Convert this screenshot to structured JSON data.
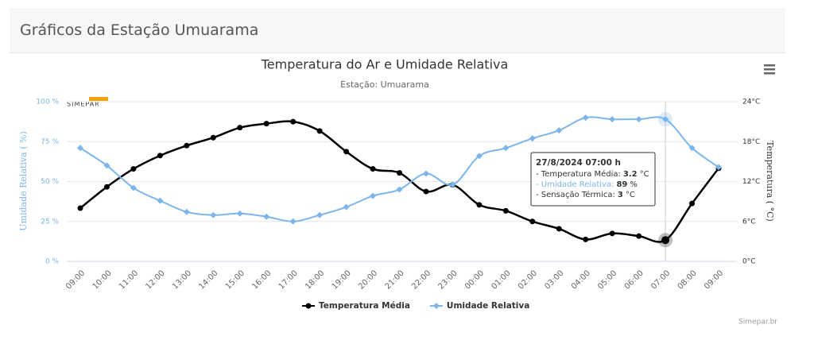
{
  "header": {
    "title": "Gráficos da Estação Umuarama"
  },
  "chart_data": {
    "type": "line",
    "title": "Temperatura do Ar e Umidade Relativa",
    "subtitle": "Estação: Umuarama",
    "logo": "SIMEPAR",
    "credit": "Simepar.br",
    "y_label": "Umidade Relativa ( %)",
    "y2_label": "Temperatura ( °C)",
    "categories": [
      "09:00",
      "10:00",
      "11:00",
      "12:00",
      "13:00",
      "14:00",
      "15:00",
      "16:00",
      "17:00",
      "18:00",
      "19:00",
      "20:00",
      "21:00",
      "22:00",
      "23:00",
      "00:00",
      "01:00",
      "02:00",
      "03:00",
      "04:00",
      "05:00",
      "06:00",
      "07:00",
      "08:00",
      "09:00"
    ],
    "ylim": [
      0,
      100
    ],
    "yticks": [
      {
        "value": 0,
        "label": "0 %"
      },
      {
        "value": 25,
        "label": "25 %"
      },
      {
        "value": 50,
        "label": "50 %"
      },
      {
        "value": 75,
        "label": "75 %"
      },
      {
        "value": 100,
        "label": "100 %"
      }
    ],
    "y2lim": [
      0,
      24
    ],
    "y2ticks": [
      {
        "value": 0,
        "label": "0°C"
      },
      {
        "value": 6,
        "label": "6°C"
      },
      {
        "value": 12,
        "label": "12°C"
      },
      {
        "value": 18,
        "label": "18°C"
      },
      {
        "value": 24,
        "label": "24°C"
      }
    ],
    "grid": true,
    "series": [
      {
        "name": "Temperatura Média",
        "color": "#000000",
        "axis": "y2",
        "values": [
          8.0,
          11.2,
          13.9,
          15.9,
          17.4,
          18.6,
          20.1,
          20.7,
          21.0,
          19.6,
          16.5,
          13.9,
          13.3,
          10.5,
          11.5,
          8.5,
          7.6,
          6.0,
          4.9,
          3.3,
          4.2,
          3.8,
          3.2,
          8.7,
          14.0
        ]
      },
      {
        "name": "Umidade Relativa",
        "color": "#7cb5ec",
        "axis": "y",
        "values": [
          71,
          60,
          46,
          38,
          31,
          29,
          30,
          28,
          25,
          29,
          34,
          41,
          45,
          55,
          48,
          66,
          71,
          77,
          82,
          90,
          89,
          89,
          89,
          71,
          59
        ]
      }
    ],
    "tooltip": {
      "title": "27/8/2024 07:00 h",
      "rows": [
        {
          "label": "- Temperatura Média:",
          "value": 3.2,
          "unit": "°C"
        },
        {
          "label": "- Umidade Relativa:",
          "value": 89,
          "unit": "%"
        },
        {
          "label": "- Sensação Térmica:",
          "value": 3,
          "unit": "°C"
        }
      ]
    }
  }
}
